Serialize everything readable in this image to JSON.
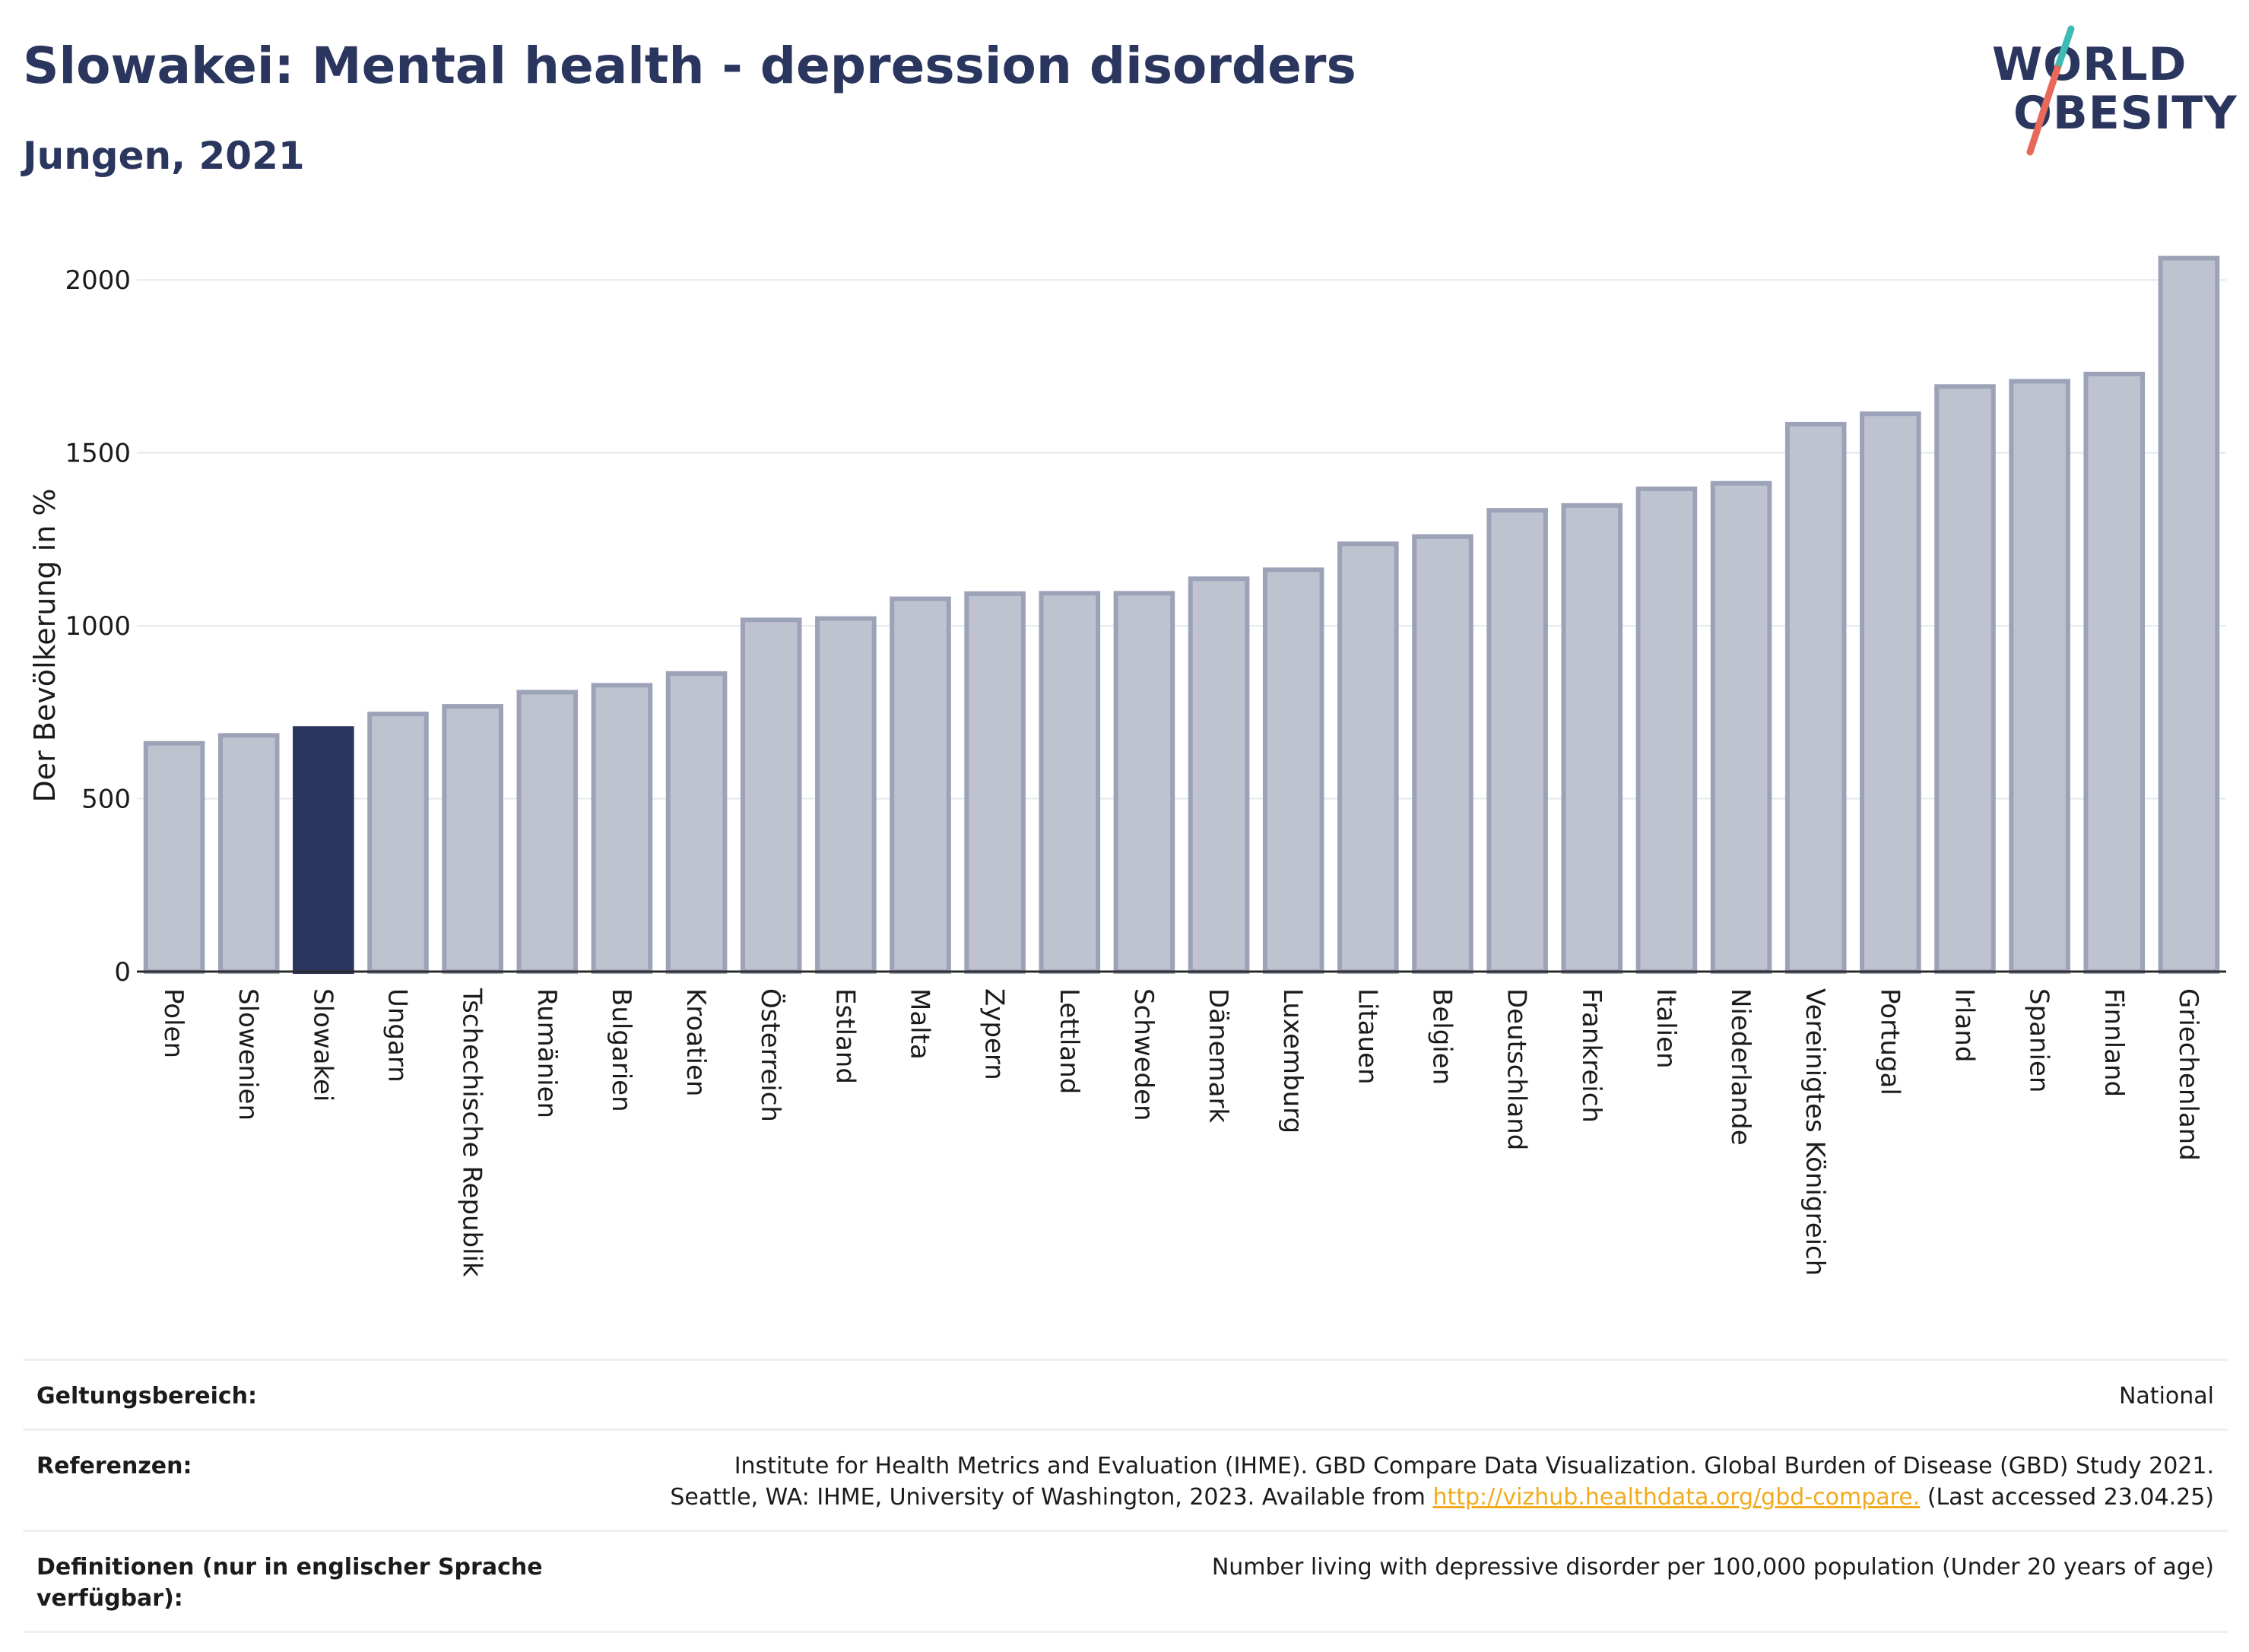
{
  "header": {
    "title": "Slowakei: Mental health - depression disorders",
    "subtitle": "Jungen, 2021"
  },
  "logo": {
    "line1": "WORLD",
    "line2": "OBESITY",
    "accent_teal": "#3cbcb4",
    "accent_coral": "#e8685a"
  },
  "chart_data": {
    "type": "bar",
    "title": "Slowakei: Mental health - depression disorders",
    "subtitle": "Jungen, 2021",
    "xlabel": "",
    "ylabel": "Der Bevölkerung in %",
    "ylim": [
      0,
      2150
    ],
    "yticks": [
      0,
      500,
      1000,
      1500,
      2000
    ],
    "grid": true,
    "highlight": "Slowakei",
    "bar_color": "#bfc3d0",
    "bar_edge_color": "#9ca2b8",
    "highlight_color": "#2b365f",
    "categories": [
      "Polen",
      "Slowenien",
      "Slowakei",
      "Ungarn",
      "Tschechische Republik",
      "Rumänien",
      "Bulgarien",
      "Kroatien",
      "Österreich",
      "Estland",
      "Malta",
      "Zypern",
      "Lettland",
      "Schweden",
      "Dänemark",
      "Luxemburg",
      "Litauen",
      "Belgien",
      "Deutschland",
      "Frankreich",
      "Italien",
      "Niederlande",
      "Vereinigtes Königreich",
      "Portugal",
      "Irland",
      "Spanien",
      "Finnland",
      "Griechenland"
    ],
    "values": [
      660,
      683,
      703,
      745,
      767,
      808,
      828,
      862,
      1017,
      1021,
      1078,
      1093,
      1094,
      1094,
      1136,
      1162,
      1237,
      1258,
      1334,
      1348,
      1396,
      1412,
      1583,
      1613,
      1692,
      1707,
      1728,
      2063
    ]
  },
  "footer": {
    "scope_label": "Geltungsbereich:",
    "scope_value": "National",
    "refs_label": "Referenzen:",
    "refs_line1": "Institute for Health Metrics and Evaluation (IHME). GBD Compare Data Visualization. Global Burden of Disease (GBD) Study 2021.",
    "refs_line2_pre": "Seattle, WA: IHME, University of Washington, 2023. Available from ",
    "refs_link": "http://vizhub.healthdata.org/gbd-compare.",
    "refs_line2_post": " (Last accessed 23.04.25)",
    "defs_label": "Definitionen (nur in englischer Sprache verfügbar):",
    "defs_value": "Number living with depressive disorder per 100,000 population (Under 20 years of age)"
  }
}
